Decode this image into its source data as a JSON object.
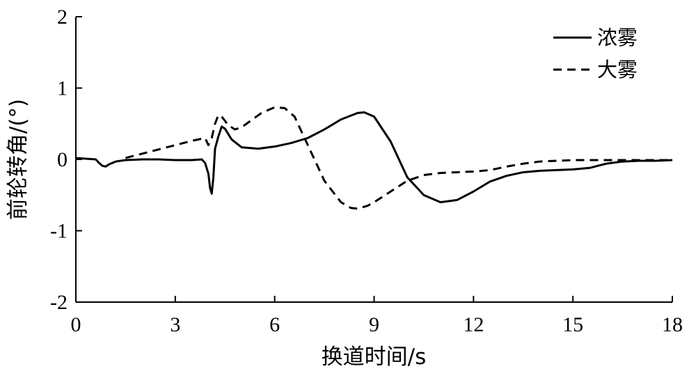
{
  "chart_data": {
    "type": "line",
    "xlabel": "换道时间/s",
    "ylabel": "前轮转角/(°)",
    "xlim": [
      0,
      18
    ],
    "ylim": [
      -2,
      2
    ],
    "xticks": [
      "0",
      "3",
      "6",
      "9",
      "12",
      "15",
      "18"
    ],
    "yticks": [
      "-2",
      "-1",
      "0",
      "1",
      "2"
    ],
    "grid": false,
    "legend_position": "top-right",
    "series": [
      {
        "name": "浓雾",
        "style": "solid",
        "color": "#000000",
        "x": [
          0,
          0.3,
          0.6,
          0.7,
          0.8,
          0.9,
          1.0,
          1.2,
          1.5,
          2.0,
          2.5,
          3.0,
          3.5,
          3.8,
          3.9,
          4.0,
          4.05,
          4.1,
          4.15,
          4.2,
          4.3,
          4.4,
          4.5,
          4.7,
          5.0,
          5.5,
          6.0,
          6.5,
          7.0,
          7.5,
          8.0,
          8.5,
          8.7,
          9.0,
          9.5,
          10.0,
          10.5,
          11.0,
          11.5,
          12.0,
          12.5,
          13.0,
          13.5,
          14.0,
          14.5,
          15.0,
          15.5,
          16.0,
          16.5,
          17.0,
          17.5,
          18.0
        ],
        "y": [
          0.02,
          0.01,
          0.0,
          -0.05,
          -0.09,
          -0.1,
          -0.07,
          -0.03,
          -0.01,
          0.0,
          0.0,
          -0.01,
          -0.01,
          0.0,
          -0.05,
          -0.2,
          -0.4,
          -0.48,
          -0.25,
          0.15,
          0.32,
          0.46,
          0.43,
          0.28,
          0.17,
          0.15,
          0.18,
          0.23,
          0.3,
          0.42,
          0.56,
          0.65,
          0.66,
          0.6,
          0.25,
          -0.25,
          -0.5,
          -0.6,
          -0.57,
          -0.45,
          -0.31,
          -0.23,
          -0.18,
          -0.16,
          -0.15,
          -0.14,
          -0.12,
          -0.06,
          -0.03,
          -0.02,
          -0.02,
          -0.01
        ]
      },
      {
        "name": "大雾",
        "style": "dashed",
        "color": "#000000",
        "x": [
          1.5,
          2.0,
          2.5,
          3.0,
          3.5,
          3.9,
          4.0,
          4.1,
          4.2,
          4.3,
          4.4,
          4.6,
          4.8,
          5.0,
          5.3,
          5.6,
          6.0,
          6.3,
          6.6,
          7.0,
          7.5,
          8.0,
          8.3,
          8.5,
          8.8,
          9.0,
          9.5,
          10.0,
          10.5,
          11.0,
          11.5,
          12.0,
          12.5,
          13.0,
          13.5,
          14.0,
          15.0,
          16.0,
          17.0,
          18.0
        ],
        "y": [
          0.02,
          0.08,
          0.14,
          0.2,
          0.26,
          0.3,
          0.2,
          0.3,
          0.5,
          0.62,
          0.6,
          0.48,
          0.42,
          0.45,
          0.55,
          0.65,
          0.73,
          0.72,
          0.6,
          0.2,
          -0.3,
          -0.6,
          -0.68,
          -0.69,
          -0.65,
          -0.6,
          -0.45,
          -0.3,
          -0.22,
          -0.19,
          -0.18,
          -0.17,
          -0.15,
          -0.1,
          -0.06,
          -0.03,
          -0.01,
          -0.01,
          -0.01,
          -0.01
        ]
      }
    ]
  }
}
